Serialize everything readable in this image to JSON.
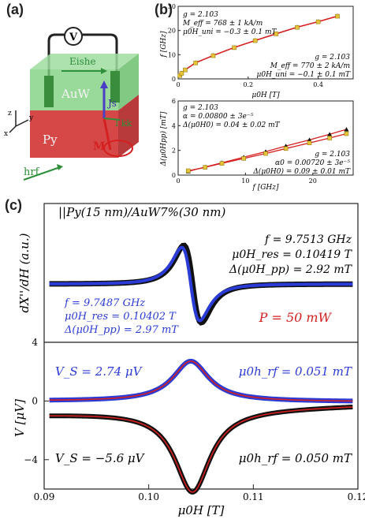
{
  "panels": {
    "a": "(a)",
    "b": "(b)",
    "c": "(c)"
  },
  "schematic": {
    "voltmeter": "V",
    "eishe": "Eishe",
    "js": "Js",
    "auw": "AuW",
    "py": "Py",
    "hrf": "hrf",
    "m": "M",
    "kk": "I kk",
    "axes": {
      "z": "z",
      "y": "y",
      "x": "x"
    }
  },
  "chart_data": [
    {
      "type": "scatter",
      "panel": "b-top",
      "xlabel": "μ0H [T]",
      "ylabel": "f [GHz]",
      "xlim": [
        0,
        0.5
      ],
      "ylim": [
        0,
        30
      ],
      "xticks": [
        "0",
        "0.2",
        "0.4"
      ],
      "yticks": [
        "0",
        "10",
        "20",
        "30"
      ],
      "series": [
        {
          "name": "",
          "marker": "triangle",
          "color": "#111111",
          "x": [
            0.005,
            0.01,
            0.02,
            0.05,
            0.1,
            0.16,
            0.22,
            0.28,
            0.34,
            0.4,
            0.455
          ],
          "y": [
            1.5,
            2.4,
            3.8,
            6.7,
            9.7,
            13.0,
            15.9,
            18.7,
            21.4,
            23.7,
            26.0
          ]
        },
        {
          "name": "",
          "marker": "square",
          "color": "#e6c43a",
          "x": [
            0.005,
            0.01,
            0.02,
            0.05,
            0.1,
            0.16,
            0.22,
            0.28,
            0.34,
            0.4,
            0.455
          ],
          "y": [
            1.4,
            2.3,
            3.7,
            6.6,
            9.6,
            12.9,
            15.8,
            18.6,
            21.3,
            23.6,
            25.9
          ]
        }
      ],
      "annotations": [
        "g = 2.103",
        "M_eff = 768 ± 1 kA/m",
        "μ0H_uni = −0.3 ± 0.1 mT",
        "g = 2.103",
        "M_eff = 770 ± 2 kA/m",
        "μ0H_uni = −0.1 ± 0.1 mT"
      ]
    },
    {
      "type": "scatter",
      "panel": "b-bottom",
      "xlabel": "f [GHz]",
      "ylabel": "Δ(μ0Hpp) [mT]",
      "xlim": [
        0,
        26
      ],
      "ylim": [
        0,
        6
      ],
      "xticks": [
        "0",
        "10",
        "20"
      ],
      "yticks": [
        "0",
        "2",
        "4",
        "6"
      ],
      "series": [
        {
          "name": "",
          "marker": "triangle",
          "color": "#111111",
          "x": [
            1.5,
            4,
            6.5,
            9.75,
            13,
            16,
            19.5,
            22.5,
            25
          ],
          "y": [
            0.3,
            0.65,
            1.0,
            1.45,
            1.9,
            2.35,
            2.85,
            3.3,
            3.7
          ]
        },
        {
          "name": "",
          "marker": "square",
          "color": "#e6c43a",
          "x": [
            1.5,
            4,
            6.5,
            9.75,
            13,
            16,
            19.5,
            22.5,
            25
          ],
          "y": [
            0.35,
            0.63,
            0.95,
            1.35,
            1.75,
            2.15,
            2.6,
            3.0,
            3.35
          ]
        }
      ],
      "annotations": [
        "g = 2.103",
        "α = 0.00800 ± 3e⁻⁵",
        "Δ(μ0H0) = 0.04 ± 0.02 mT",
        "g = 2.103",
        "α0 = 0.00720 ± 3e⁻⁵",
        "Δ(μ0H0) = 0.09 ± 0.01 mT"
      ]
    },
    {
      "type": "line",
      "panel": "c-top",
      "ylabel": "dX''/dH (a.u.)",
      "xlim": [
        0.09,
        0.12
      ],
      "title": "||Py(15 nm)/AuW7%(30 nm)",
      "annotations": {
        "black": [
          "f = 9.7513 GHz",
          "μ0H_res = 0.10419 T",
          "Δ(μ0H_pp) = 2.92 mT"
        ],
        "blue": [
          "f = 9.7487 GHz",
          "μ0H_res = 0.10402 T",
          "Δ(μ0H_pp) = 2.97 mT"
        ],
        "power": "P = 50 mW"
      }
    },
    {
      "type": "line",
      "panel": "c-bottom",
      "xlabel": "μ0H [T]",
      "ylabel": "V [μV]",
      "xlim": [
        0.09,
        0.12
      ],
      "ylim": [
        -6,
        4
      ],
      "xticks": [
        "0.09",
        "0.10",
        "0.11",
        "0.12"
      ],
      "yticks": [
        "4",
        "0",
        "−4"
      ],
      "series": [
        {
          "name": "",
          "color": "#2b3bd6",
          "peak": 2.74,
          "center": 0.10402,
          "width": 0.00297
        },
        {
          "name": "",
          "color": "#111111",
          "peak": -5.6,
          "center": 0.10419,
          "width": 0.00292
        }
      ],
      "annotations": {
        "vs_blue": "V_S = 2.74 μV",
        "hrf_blue": "μ0h_rf = 0.051 mT",
        "vs_black": "V_S = −5.6 μV",
        "hrf_black": "μ0h_rf = 0.050 mT"
      }
    }
  ]
}
